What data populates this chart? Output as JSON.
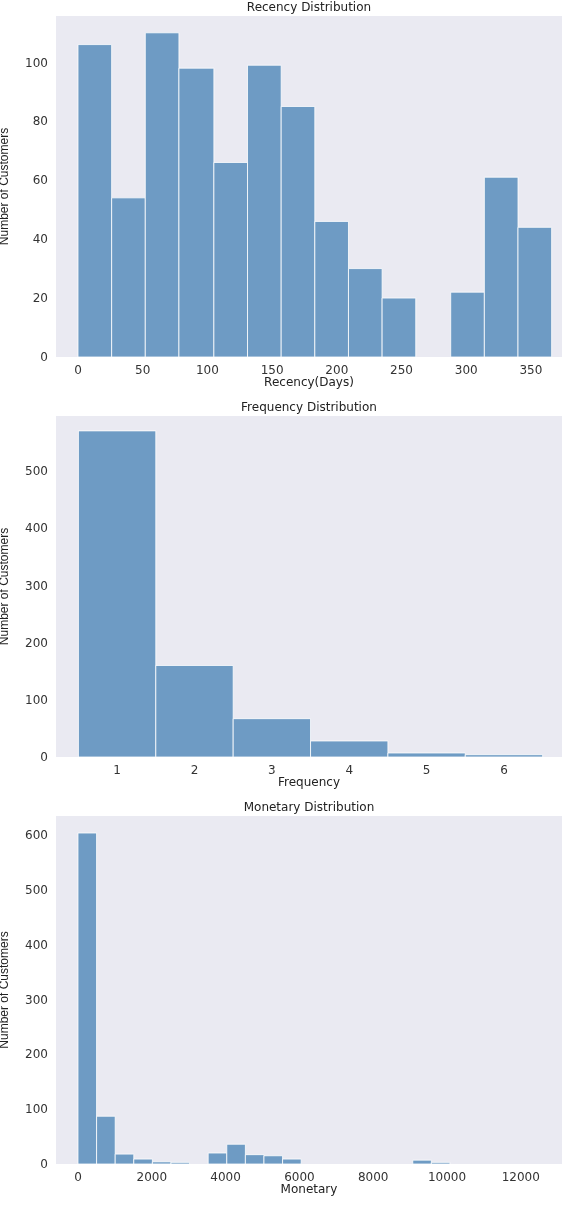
{
  "chart_data": [
    {
      "type": "histogram",
      "title": "Recency Distribution",
      "xlabel": "Recency(Days)",
      "ylabel": "Number of Customers",
      "color": "#6e9bc4",
      "bins": [
        0,
        26,
        52,
        78,
        105,
        131,
        157,
        183,
        209,
        235,
        261,
        288,
        314,
        340,
        366
      ],
      "values": [
        106,
        54,
        110,
        98,
        66,
        99,
        85,
        46,
        30,
        20,
        0,
        22,
        61,
        44
      ],
      "xlim": [
        -17,
        374
      ],
      "xticks": [
        0,
        50,
        100,
        150,
        200,
        250,
        300,
        350
      ],
      "ylim": [
        0,
        115.7
      ],
      "yticks": [
        0,
        20,
        40,
        60,
        80,
        100
      ],
      "grid": false
    },
    {
      "type": "histogram",
      "title": "Frequency Distribution",
      "xlabel": "Frequency",
      "ylabel": "Number of Customers",
      "color": "#6e9bc4",
      "bins": [
        0.5,
        1.5,
        2.5,
        3.5,
        4.5,
        5.5,
        6.5
      ],
      "values": [
        570,
        160,
        67,
        28,
        7,
        4
      ],
      "xlim": [
        0.21,
        6.75
      ],
      "xticks": [
        1,
        2,
        3,
        4,
        5,
        6
      ],
      "ylim": [
        0,
        596
      ],
      "yticks": [
        0,
        100,
        200,
        300,
        400,
        500
      ],
      "grid": false
    },
    {
      "type": "histogram",
      "title": "Monetary Distribution",
      "xlabel": "Monetary",
      "ylabel": "Number of Customers",
      "color": "#6e9bc4",
      "bins": [
        0,
        504,
        1008,
        1512,
        2016,
        2520,
        3024,
        3528,
        4032,
        4536,
        5040,
        5544,
        6048,
        6552,
        7056,
        7560,
        8064,
        8568,
        9072,
        9576,
        10080,
        10584,
        11088,
        11592,
        12096,
        12600
      ],
      "values": [
        603,
        87,
        18,
        9,
        4,
        3,
        0,
        20,
        36,
        17,
        15,
        9,
        null,
        0,
        null,
        null,
        null,
        null,
        7,
        3,
        null,
        0,
        null,
        0,
        null
      ],
      "xlim": [
        -596,
        13116
      ],
      "xticks": [
        0,
        2000,
        4000,
        6000,
        8000,
        10000,
        12000
      ],
      "ylim": [
        0,
        634
      ],
      "yticks": [
        0,
        100,
        200,
        300,
        400,
        500,
        600
      ],
      "grid": false
    }
  ]
}
